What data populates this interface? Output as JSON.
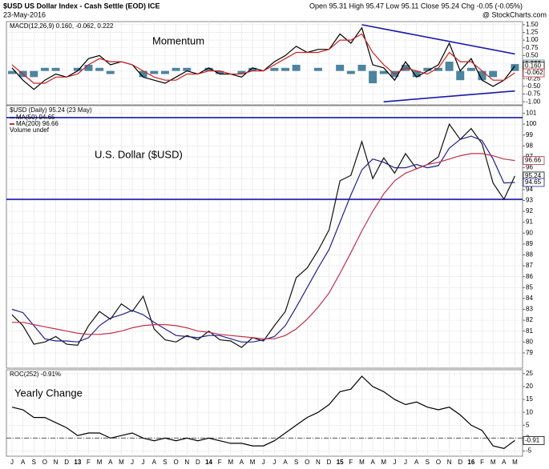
{
  "header": {
    "title": "$USD US Dollar Index - Cash Settle (EOD) ICE",
    "date": "23-May-2016",
    "ohlc": "Open 95.31 High 95.47 Low 95.11 Close 95.24 Chg -0.05 (-0.05%)",
    "source": "@ StockCharts.com"
  },
  "chart_data": [
    {
      "type": "line",
      "title": "MACD(12,26,9) 0.160, -0.062, 0.222",
      "annotation": "Momentum",
      "ylim": [
        -1.1,
        1.6
      ],
      "yticks": [
        {
          "value": 1.5,
          "label": "1.50"
        },
        {
          "value": 1.25,
          "label": "1.25"
        },
        {
          "value": 1.0,
          "label": "1.00"
        },
        {
          "value": 0.75,
          "label": "0.75"
        },
        {
          "value": 0.5,
          "label": "0.50"
        },
        {
          "value": 0.25,
          "label": "0.25"
        },
        {
          "value": 0,
          "label": "0.00"
        },
        {
          "value": -0.25,
          "label": "-0.25"
        },
        {
          "value": -0.5,
          "label": "-0.50"
        },
        {
          "value": -0.75,
          "label": "-0.75"
        },
        {
          "value": -1.0,
          "label": "-1.00"
        }
      ],
      "grid": true,
      "trendlines": [
        {
          "x": [
            32,
            46
          ],
          "y": [
            1.5,
            0.55
          ]
        },
        {
          "x": [
            34,
            46
          ],
          "y": [
            -1.0,
            -0.65
          ]
        }
      ],
      "series": [
        {
          "type": "bar",
          "color": "#2e6e8e",
          "last_label": "0.222",
          "values": [
            -0.1,
            -0.2,
            -0.2,
            0.1,
            0.1,
            0,
            0.1,
            0.2,
            0.1,
            -0.1,
            0,
            0,
            -0.2,
            -0.1,
            -0.1,
            0.1,
            0.1,
            0,
            0.1,
            -0.1,
            0,
            -0.1,
            0.1,
            0,
            0.1,
            0.1,
            0.2,
            0,
            0.1,
            0,
            0.2,
            -0.1,
            0.2,
            -0.4,
            -0.1,
            -0.2,
            0.2,
            -0.2,
            0.1,
            0.1,
            0.3,
            -0.3,
            0.1,
            -0.3,
            -0.2,
            0,
            0.222
          ]
        },
        {
          "type": "line",
          "color": "#000000",
          "last_label": "0.160",
          "values": [
            0.1,
            -0.3,
            -0.6,
            -0.3,
            -0.1,
            -0.2,
            0,
            0.4,
            0.5,
            0.2,
            0.3,
            0.2,
            -0.2,
            -0.3,
            -0.4,
            -0.2,
            0,
            -0.1,
            0.1,
            -0.1,
            -0.1,
            -0.2,
            0.1,
            0,
            0.3,
            0.5,
            0.8,
            0.6,
            0.7,
            0.7,
            1.2,
            0.9,
            1.4,
            0.2,
            0.1,
            -0.3,
            0.3,
            -0.2,
            0,
            0.2,
            0.9,
            0,
            0.4,
            -0.3,
            -0.5,
            -0.3,
            0.16
          ]
        },
        {
          "type": "line",
          "color": "#cc2222",
          "last_label": "-0.062",
          "values": [
            0.2,
            -0.1,
            -0.4,
            -0.4,
            -0.2,
            -0.2,
            -0.1,
            0.2,
            0.4,
            0.3,
            0.3,
            0.2,
            0,
            -0.2,
            -0.3,
            -0.3,
            -0.1,
            -0.1,
            0,
            0,
            -0.1,
            -0.1,
            0,
            0,
            0.2,
            0.4,
            0.6,
            0.6,
            0.6,
            0.7,
            1,
            1,
            1.2,
            0.6,
            0.2,
            -0.1,
            0.1,
            0,
            -0.1,
            0.1,
            0.6,
            0.3,
            0.3,
            0,
            -0.3,
            -0.3,
            -0.062
          ]
        }
      ]
    },
    {
      "type": "line",
      "title": "$USD (Daily) 95.24 (23 May)",
      "note": "Volume undef",
      "annotation": "U.S. Dollar ($USD)",
      "ylim": [
        77.6,
        101.7
      ],
      "yticks": [
        79,
        80,
        81,
        82,
        83,
        84,
        85,
        86,
        87,
        88,
        89,
        90,
        91,
        92,
        93,
        94,
        95,
        96,
        97,
        98,
        99,
        100,
        101
      ],
      "grid": true,
      "hlines": [
        100.6,
        93.1
      ],
      "series": [
        {
          "type": "line",
          "color": "#111111",
          "last_label": "95.24",
          "values": [
            82.5,
            81.5,
            79.8,
            80,
            80.5,
            79.8,
            79.7,
            81.5,
            82.8,
            82.1,
            83.5,
            82.8,
            84.2,
            81.2,
            80.2,
            80.0,
            80.6,
            80.2,
            81,
            80.2,
            80.1,
            79.5,
            80.4,
            80.1,
            81.5,
            82.8,
            85.9,
            86.8,
            88.4,
            90.3,
            94.8,
            95.3,
            98.4,
            95,
            96.9,
            95.5,
            97.3,
            95.9,
            96.3,
            97.0,
            100,
            98.6,
            99.6,
            98.2,
            94.6,
            93.1,
            95.24
          ]
        },
        {
          "type": "line",
          "name": "MA(50) 94.65",
          "color": "#22228a",
          "last_label": "94.65",
          "values": [
            83,
            82.7,
            81.5,
            80.3,
            80.1,
            80.1,
            80,
            80.4,
            81.5,
            82.2,
            82.5,
            82.9,
            82.5,
            81.8,
            81.2,
            80.6,
            80.5,
            80.4,
            80.6,
            80.6,
            80.3,
            80,
            80,
            80.2,
            80.5,
            81.5,
            83.2,
            85,
            86.8,
            88.5,
            91,
            93.5,
            95.8,
            96.8,
            96.5,
            96,
            96,
            96.3,
            96,
            96.2,
            97.8,
            98.6,
            98.9,
            98.5,
            96.8,
            94.6,
            94.65
          ]
        },
        {
          "type": "line",
          "name": "MA(200) 96.66",
          "color": "#c0304a",
          "last_label": "96.66",
          "values": [
            81.8,
            81.8,
            81.6,
            81.4,
            81.2,
            81.0,
            80.8,
            80.7,
            80.7,
            80.8,
            81.0,
            81.3,
            81.5,
            81.6,
            81.6,
            81.5,
            81.3,
            81.0,
            80.9,
            80.7,
            80.6,
            80.5,
            80.4,
            80.3,
            80.3,
            80.6,
            81.2,
            82.1,
            83.2,
            84.5,
            86.3,
            88.2,
            90.2,
            92,
            93.6,
            94.8,
            95.5,
            95.9,
            96.3,
            96.5,
            96.8,
            97.1,
            97.3,
            97.3,
            97.1,
            96.8,
            96.66
          ]
        }
      ]
    },
    {
      "type": "line",
      "title": "ROC(252) -0.91%",
      "annotation": "Yearly Change",
      "ylim": [
        -7,
        26.5
      ],
      "yticks": [
        25,
        20,
        15,
        10,
        5,
        0,
        -5
      ],
      "grid": true,
      "hlines": [
        0
      ],
      "categories": [
        "J",
        "A",
        "S",
        "O",
        "N",
        "D",
        "13",
        "F",
        "M",
        "A",
        "M",
        "J",
        "J",
        "A",
        "S",
        "O",
        "N",
        "D",
        "14",
        "F",
        "M",
        "A",
        "M",
        "J",
        "J",
        "A",
        "S",
        "O",
        "N",
        "D",
        "15",
        "F",
        "M",
        "A",
        "M",
        "J",
        "J",
        "A",
        "S",
        "O",
        "N",
        "D",
        "16",
        "F",
        "M",
        "A",
        "M"
      ],
      "series": [
        {
          "type": "line",
          "color": "#000000",
          "last_label": "-0.91",
          "values": [
            12,
            11,
            8,
            8,
            6,
            4,
            1,
            2,
            2,
            0,
            1,
            2,
            0,
            -1,
            0,
            -1,
            0,
            -1,
            0,
            -1,
            -2,
            -2,
            -3,
            -3,
            -1,
            2,
            5,
            8,
            10,
            13,
            18,
            19,
            24,
            20,
            18,
            15,
            13,
            14,
            12,
            11,
            12,
            9,
            5,
            3,
            -3,
            -4,
            -0.91
          ]
        }
      ]
    }
  ]
}
